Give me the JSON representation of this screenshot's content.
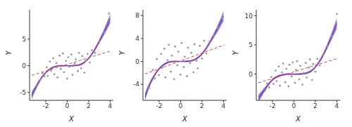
{
  "chart_data": [
    {
      "type": "scatter",
      "x_label": "X",
      "y_label": "Y",
      "xlim": [
        -3.5,
        4.3
      ],
      "xticks": [
        -2,
        0,
        2,
        4
      ],
      "ylim": [
        -6.5,
        10.5
      ],
      "yticks": [
        -5,
        0,
        5
      ],
      "series": [
        {
          "type": "scatter",
          "color": "#8c9e98",
          "marker": "circle",
          "x": [
            -2.8,
            -2.5,
            -2.3,
            -2.1,
            -1.9,
            -1.8,
            -1.6,
            -1.5,
            -1.3,
            -1.2,
            -1.0,
            -0.9,
            -0.7,
            -0.6,
            -0.4,
            -0.3,
            -0.1,
            0,
            0.1,
            0.2,
            0.4,
            0.5,
            0.7,
            0.8,
            1.0,
            1.1,
            1.3,
            1.4,
            1.6,
            1.7,
            1.9,
            2.1,
            2.3,
            2.6,
            3.0,
            3.4,
            3.9
          ],
          "values": [
            -3.8,
            -2.6,
            -1.4,
            -2.0,
            -0.3,
            -1.9,
            0.8,
            -0.9,
            1.4,
            -1.6,
            0.5,
            -2.2,
            1.9,
            -0.6,
            2.3,
            -1.2,
            0.9,
            -2.4,
            1.6,
            -0.2,
            2.1,
            -1.7,
            0.4,
            1.2,
            -1.0,
            2.4,
            -0.5,
            1.8,
            -1.3,
            0.9,
            2.2,
            0.6,
            2.9,
            2.4,
            4.6,
            6.3,
            9.8
          ]
        },
        {
          "type": "area",
          "color": "#5a5ad6",
          "x": [
            -3.3,
            -3,
            -2.5,
            -2,
            -1.5,
            -1,
            -0.5,
            0,
            0.5,
            1,
            1.5,
            2,
            2.5,
            3,
            3.5,
            4
          ],
          "lower": [
            -6.3,
            -4.9,
            -2.9,
            -1.5,
            -0.7,
            -0.25,
            -0.15,
            -0.1,
            -0.15,
            -0.05,
            0.3,
            1.2,
            2.5,
            4.2,
            6.0,
            7.9
          ],
          "upper": [
            -4.9,
            -3.9,
            -2.3,
            -1.1,
            -0.3,
            0.05,
            0.15,
            0.1,
            0.15,
            0.25,
            0.7,
            1.6,
            3.1,
            5.0,
            7.2,
            9.7
          ]
        },
        {
          "type": "line",
          "color": "#a0338f",
          "x": [
            -3.3,
            -3,
            -2.5,
            -2,
            -1.5,
            -1,
            -0.5,
            0,
            0.5,
            1,
            1.5,
            2,
            2.5,
            3,
            3.5,
            4
          ],
          "values": [
            -5.6,
            -4.4,
            -2.6,
            -1.3,
            -0.5,
            -0.1,
            0,
            0,
            0,
            0.1,
            0.5,
            1.4,
            2.8,
            4.6,
            6.6,
            8.8
          ]
        },
        {
          "type": "line",
          "color": "#e0403c",
          "line_style": "dashed",
          "x": [
            -3.3,
            4.1
          ],
          "values": [
            -1.8,
            2.8
          ]
        }
      ]
    },
    {
      "type": "scatter",
      "x_label": "X",
      "y_label": "Y",
      "xlim": [
        -3.5,
        4.3
      ],
      "xticks": [
        -2,
        0,
        2,
        4
      ],
      "ylim": [
        -6.8,
        9
      ],
      "yticks": [
        -4,
        0,
        4,
        8
      ],
      "series": [
        {
          "type": "scatter",
          "color": "#8c9e98",
          "marker": "circle",
          "x": [
            -2.9,
            -2.6,
            -2.4,
            -2.2,
            -2.0,
            -1.8,
            -1.7,
            -1.5,
            -1.4,
            -1.2,
            -1.1,
            -0.9,
            -0.8,
            -0.6,
            -0.5,
            -0.3,
            -0.2,
            0,
            0.1,
            0.3,
            0.4,
            0.6,
            0.7,
            0.9,
            1.0,
            1.2,
            1.3,
            1.5,
            1.6,
            1.8,
            2.0,
            2.2,
            2.4,
            2.7,
            3.1,
            3.5,
            3.9
          ],
          "values": [
            -4.6,
            -1.5,
            -3.0,
            0.4,
            -2.4,
            1.3,
            -1.1,
            2.2,
            -2.8,
            0.2,
            2.9,
            -1.8,
            1.0,
            -3.1,
            2.6,
            -0.7,
            1.7,
            -2.3,
            3.2,
            -1.0,
            0.8,
            -2.6,
            2.4,
            -0.3,
            1.5,
            -1.9,
            3.0,
            0.1,
            -1.2,
            2.7,
            0.5,
            3.6,
            1.4,
            3.4,
            4.5,
            5.8,
            7.6
          ]
        },
        {
          "type": "area",
          "color": "#5a5ad6",
          "x": [
            -3.3,
            -3,
            -2.5,
            -2,
            -1.5,
            -1,
            -0.5,
            0,
            0.5,
            1,
            1.5,
            2,
            2.5,
            3,
            3.5,
            4
          ],
          "lower": [
            -6.9,
            -5.1,
            -3.0,
            -1.5,
            -0.7,
            -0.25,
            -0.15,
            -0.1,
            -0.15,
            -0.05,
            0.3,
            1.1,
            2.3,
            3.8,
            5.3,
            7.0
          ],
          "upper": [
            -5.5,
            -4.1,
            -2.4,
            -1.1,
            -0.3,
            0.05,
            0.15,
            0.1,
            0.15,
            0.25,
            0.7,
            1.5,
            2.9,
            4.6,
            6.5,
            8.8
          ]
        },
        {
          "type": "line",
          "color": "#a0338f",
          "x": [
            -3.3,
            -3,
            -2.5,
            -2,
            -1.5,
            -1,
            -0.5,
            0,
            0.5,
            1,
            1.5,
            2,
            2.5,
            3,
            3.5,
            4
          ],
          "values": [
            -6.2,
            -4.6,
            -2.7,
            -1.3,
            -0.5,
            -0.1,
            0,
            0,
            0,
            0.1,
            0.5,
            1.3,
            2.6,
            4.2,
            5.9,
            7.9
          ]
        },
        {
          "type": "line",
          "color": "#e0403c",
          "line_style": "dashed",
          "x": [
            -3.3,
            4.1
          ],
          "values": [
            -2.2,
            2.9
          ]
        }
      ]
    },
    {
      "type": "scatter",
      "x_label": "X",
      "y_label": "Y",
      "xlim": [
        -3.5,
        4.3
      ],
      "xticks": [
        -2,
        0,
        2,
        4
      ],
      "ylim": [
        -4.5,
        11
      ],
      "yticks": [
        0,
        5,
        10
      ],
      "series": [
        {
          "type": "scatter",
          "color": "#8c9e98",
          "marker": "circle",
          "x": [
            -2.7,
            -2.5,
            -2.3,
            -2.1,
            -1.9,
            -1.7,
            -1.6,
            -1.4,
            -1.3,
            -1.1,
            -1.0,
            -0.8,
            -0.7,
            -0.5,
            -0.4,
            -0.2,
            -0.1,
            0.1,
            0.2,
            0.3,
            0.5,
            0.6,
            0.8,
            0.9,
            1.1,
            1.2,
            1.4,
            1.5,
            1.7,
            1.8,
            2.0,
            2.2,
            2.4,
            2.7,
            3.1,
            3.5,
            4.0
          ],
          "values": [
            -2.9,
            -1.6,
            -2.3,
            -0.5,
            -1.7,
            0.6,
            -1.2,
            1.3,
            -2.0,
            0.3,
            1.8,
            -1.4,
            0.9,
            -2.1,
            1.6,
            -0.4,
            2.0,
            -1.5,
            0.7,
            2.2,
            -0.9,
            1.4,
            -1.8,
            0.2,
            1.9,
            -0.6,
            1.1,
            2.5,
            -1.0,
            1.7,
            0.4,
            2.6,
            1.5,
            3.3,
            4.8,
            6.5,
            10.3
          ]
        },
        {
          "type": "area",
          "color": "#5a5ad6",
          "x": [
            -3.3,
            -3,
            -2.5,
            -2,
            -1.5,
            -1,
            -0.5,
            0,
            0.5,
            1,
            1.5,
            2,
            2.5,
            3,
            3.5,
            4
          ],
          "lower": [
            -4.9,
            -3.9,
            -2.4,
            -1.2,
            -0.6,
            -0.25,
            -0.15,
            -0.1,
            -0.15,
            -0.05,
            0.2,
            1.0,
            2.2,
            3.9,
            5.8,
            7.8
          ],
          "upper": [
            -3.5,
            -2.9,
            -1.8,
            -0.8,
            -0.2,
            0.05,
            0.15,
            0.1,
            0.15,
            0.25,
            0.6,
            1.4,
            2.8,
            4.7,
            7.0,
            9.6
          ]
        },
        {
          "type": "line",
          "color": "#a0338f",
          "x": [
            -3.3,
            -3,
            -2.5,
            -2,
            -1.5,
            -1,
            -0.5,
            0,
            0.5,
            1,
            1.5,
            2,
            2.5,
            3,
            3.5,
            4
          ],
          "values": [
            -4.2,
            -3.4,
            -2.1,
            -1.0,
            -0.4,
            -0.1,
            0,
            0,
            0,
            0.1,
            0.4,
            1.2,
            2.5,
            4.3,
            6.4,
            8.7
          ]
        },
        {
          "type": "line",
          "color": "#e0403c",
          "line_style": "dashed",
          "x": [
            -3.3,
            4.1
          ],
          "values": [
            -1.5,
            2.7
          ]
        }
      ]
    }
  ]
}
